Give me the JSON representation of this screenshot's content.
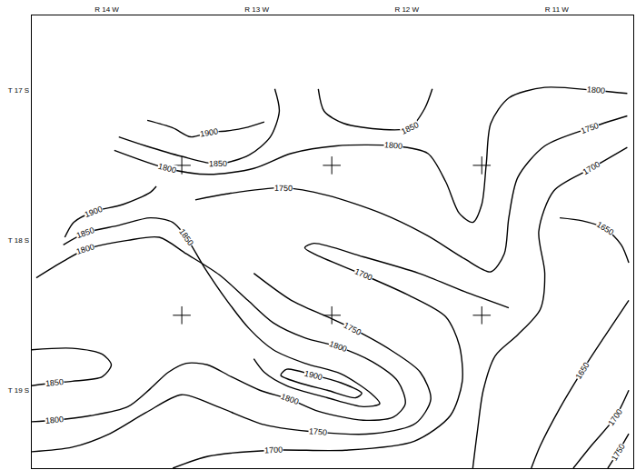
{
  "chart_data": {
    "type": "contour_map",
    "color": "#000000",
    "grid": false,
    "xlim": [
      0,
      4.01
    ],
    "ylim": [
      -0.02,
      3.0
    ],
    "xticks": [
      {
        "value": 0.5,
        "label": "R 14 W"
      },
      {
        "value": 1.5,
        "label": "R 13 W"
      },
      {
        "value": 2.5,
        "label": "R 12 W"
      },
      {
        "value": 3.5,
        "label": "R 11 W"
      }
    ],
    "yticks": [
      {
        "value": 2.5,
        "label": "T 17 S"
      },
      {
        "value": 1.5,
        "label": "T 18 S"
      },
      {
        "value": 0.5,
        "label": "T 19 S"
      }
    ],
    "contours": [
      {
        "value": 1900,
        "x": [
          0.77,
          0.94,
          1.06,
          1.18,
          1.3,
          1.42,
          1.55
        ],
        "y": [
          2.3,
          2.25,
          2.19,
          2.22,
          2.23,
          2.25,
          2.29
        ],
        "label_points": [
          [
            1.18,
            2.22
          ]
        ]
      },
      {
        "value": 1850,
        "x": [
          0.58,
          0.76,
          1.0,
          1.24,
          1.45,
          1.59,
          1.65,
          1.62
        ],
        "y": [
          2.19,
          2.13,
          2.06,
          2.01,
          2.07,
          2.19,
          2.36,
          2.51
        ],
        "label_points": [
          [
            1.24,
            2.01
          ]
        ]
      },
      {
        "value": 1800,
        "x": [
          0.55,
          0.9,
          1.18,
          1.48,
          1.73,
          2.03,
          2.41,
          2.64,
          2.76,
          2.85,
          2.94,
          3.0,
          3.03,
          3.06,
          3.18,
          3.42,
          3.76,
          3.97
        ],
        "y": [
          2.1,
          1.98,
          1.94,
          1.98,
          2.08,
          2.13,
          2.13,
          2.08,
          1.89,
          1.68,
          1.62,
          1.74,
          2.01,
          2.28,
          2.45,
          2.52,
          2.5,
          2.48
        ],
        "label_points": [
          [
            0.9,
            1.98
          ],
          [
            2.41,
            2.13
          ],
          [
            3.76,
            2.5
          ]
        ]
      },
      {
        "value": 1850,
        "x": [
          1.91,
          1.95,
          2.08,
          2.33,
          2.52,
          2.62,
          2.67
        ],
        "y": [
          2.51,
          2.36,
          2.28,
          2.24,
          2.25,
          2.38,
          2.51
        ],
        "label_points": [
          [
            2.52,
            2.25
          ]
        ]
      },
      {
        "value": 1900,
        "x": [
          0.22,
          0.28,
          0.41,
          0.61,
          0.79,
          0.83
        ],
        "y": [
          1.52,
          1.62,
          1.69,
          1.74,
          1.82,
          1.86
        ],
        "label_points": [
          [
            0.41,
            1.69
          ]
        ]
      },
      {
        "value": 1850,
        "x": [
          0.21,
          0.36,
          0.58,
          0.79,
          0.94,
          1.03,
          1.15,
          1.3,
          1.45,
          1.61,
          1.82,
          2.06,
          2.26,
          2.32,
          2.21,
          1.97,
          1.7,
          1.55,
          1.48
        ],
        "y": [
          1.47,
          1.55,
          1.6,
          1.65,
          1.62,
          1.52,
          1.32,
          1.1,
          0.91,
          0.77,
          0.68,
          0.61,
          0.48,
          0.41,
          0.39,
          0.45,
          0.53,
          0.62,
          0.71
        ],
        "label_points": [
          [
            0.36,
            1.55
          ],
          [
            1.03,
            1.52
          ]
        ]
      },
      {
        "value": 1900,
        "x": [
          1.7,
          1.88,
          2.06,
          2.2,
          2.16,
          1.97,
          1.78,
          1.66,
          1.7
        ],
        "y": [
          0.64,
          0.6,
          0.55,
          0.48,
          0.45,
          0.5,
          0.55,
          0.6,
          0.64
        ],
        "label_points": [
          [
            1.88,
            0.6
          ]
        ]
      },
      {
        "value": 1800,
        "x": [
          0.03,
          0.21,
          0.36,
          0.64,
          0.85,
          1.03,
          1.25,
          1.44,
          1.61,
          1.82,
          2.04,
          2.27,
          2.44,
          2.49,
          2.41,
          2.21,
          1.91,
          1.72,
          1.52,
          1.33,
          1.17,
          1.03,
          0.91,
          0.79,
          0.64,
          0.39,
          0.15,
          0.0
        ],
        "y": [
          1.25,
          1.36,
          1.44,
          1.5,
          1.52,
          1.41,
          1.27,
          1.1,
          0.95,
          0.85,
          0.79,
          0.69,
          0.56,
          0.41,
          0.32,
          0.3,
          0.36,
          0.44,
          0.5,
          0.59,
          0.67,
          0.68,
          0.62,
          0.51,
          0.39,
          0.33,
          0.3,
          0.29
        ],
        "label_points": [
          [
            0.36,
            1.44
          ],
          [
            2.04,
            0.79
          ],
          [
            1.72,
            0.44
          ],
          [
            0.15,
            0.3
          ]
        ]
      },
      {
        "value": 1850,
        "x": [
          0.0,
          0.27,
          0.47,
          0.53,
          0.47,
          0.27,
          0.15,
          0.0
        ],
        "y": [
          0.77,
          0.78,
          0.74,
          0.67,
          0.59,
          0.56,
          0.55,
          0.53
        ],
        "label_points": [
          [
            0.15,
            0.55
          ]
        ]
      },
      {
        "value": 1750,
        "x": [
          1.09,
          1.3,
          1.68,
          1.97,
          2.33,
          2.64,
          2.88,
          3.06,
          3.15,
          3.18,
          3.24,
          3.42,
          3.72,
          3.97
        ],
        "y": [
          1.77,
          1.81,
          1.85,
          1.8,
          1.68,
          1.53,
          1.38,
          1.29,
          1.41,
          1.65,
          1.92,
          2.13,
          2.25,
          2.33
        ],
        "label_points": [
          [
            1.68,
            1.85
          ],
          [
            3.72,
            2.25
          ]
        ]
      },
      {
        "value": 1750,
        "x": [
          1.48,
          1.73,
          1.97,
          2.14,
          2.39,
          2.59,
          2.66,
          2.56,
          2.27,
          1.91,
          1.55,
          1.24,
          1.0,
          0.76,
          0.52,
          0.27,
          0.0
        ],
        "y": [
          1.28,
          1.1,
          0.99,
          0.91,
          0.77,
          0.62,
          0.44,
          0.28,
          0.21,
          0.22,
          0.27,
          0.39,
          0.47,
          0.35,
          0.21,
          0.12,
          0.09
        ],
        "label_points": [
          [
            2.14,
            0.91
          ],
          [
            1.91,
            0.22
          ]
        ]
      },
      {
        "value": 1700,
        "x": [
          3.18,
          2.88,
          2.58,
          2.21,
          1.88,
          1.82,
          1.88,
          2.21,
          2.52,
          2.76,
          2.85,
          2.87,
          2.79,
          2.55,
          2.09,
          1.61,
          1.18,
          0.94
        ],
        "y": [
          1.05,
          1.16,
          1.28,
          1.39,
          1.48,
          1.45,
          1.41,
          1.27,
          1.13,
          0.99,
          0.8,
          0.56,
          0.33,
          0.16,
          0.1,
          0.1,
          0.06,
          -0.02
        ],
        "label_points": [
          [
            2.21,
            1.27
          ],
          [
            1.61,
            0.1
          ]
        ]
      },
      {
        "value": 1700,
        "x": [
          3.97,
          3.73,
          3.48,
          3.38,
          3.42,
          3.39,
          3.24,
          3.09,
          3.01,
          2.97,
          2.94
        ],
        "y": [
          2.12,
          1.98,
          1.83,
          1.56,
          1.28,
          1.04,
          0.87,
          0.73,
          0.5,
          0.22,
          -0.02
        ],
        "label_points": [
          [
            3.73,
            1.98
          ]
        ]
      },
      {
        "value": 1650,
        "x": [
          3.52,
          3.67,
          3.82,
          3.93,
          3.98
        ],
        "y": [
          1.65,
          1.63,
          1.58,
          1.47,
          1.35
        ],
        "label_points": [
          [
            3.82,
            1.58
          ]
        ]
      },
      {
        "value": 1650,
        "x": [
          3.98,
          3.82,
          3.67,
          3.52,
          3.39,
          3.33
        ],
        "y": [
          1.1,
          0.86,
          0.63,
          0.38,
          0.13,
          -0.02
        ],
        "label_points": [
          [
            3.67,
            0.63
          ]
        ]
      },
      {
        "value": 1700,
        "x": [
          3.98,
          3.89,
          3.73,
          3.61
        ],
        "y": [
          0.5,
          0.32,
          0.13,
          -0.02
        ],
        "label_points": [
          [
            3.89,
            0.32
          ]
        ]
      },
      {
        "value": 1750,
        "x": [
          3.98,
          3.91,
          3.84
        ],
        "y": [
          0.21,
          0.09,
          -0.02
        ],
        "label_points": [
          [
            3.91,
            0.09
          ]
        ]
      }
    ]
  }
}
